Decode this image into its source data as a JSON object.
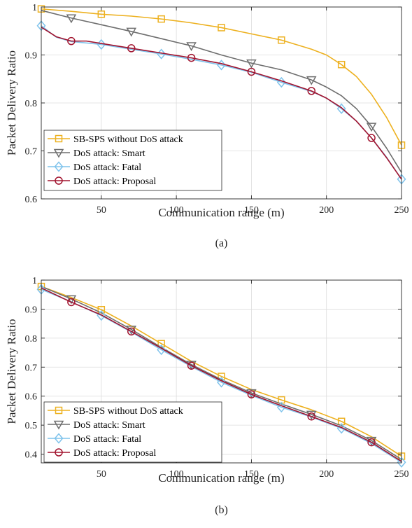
{
  "chart_data": [
    {
      "type": "line",
      "caption": "(a)",
      "xlabel": "Communication range (m)",
      "ylabel": "Packet Delivery Ratio",
      "xlim": [
        10,
        250
      ],
      "ylim": [
        0.6,
        1.0
      ],
      "xticks": [
        50,
        100,
        150,
        200,
        250
      ],
      "yticks": [
        0.6,
        0.7,
        0.8,
        0.9,
        1
      ],
      "grid": true,
      "legend_position": "bottom-left",
      "series": [
        {
          "name": "SB-SPS without DoS attack",
          "color": "#EDB120",
          "marker": "square",
          "x": [
            10,
            30,
            50,
            70,
            90,
            110,
            130,
            150,
            170,
            190,
            200,
            210,
            220,
            230,
            240,
            250
          ],
          "y": [
            0.996,
            0.991,
            0.985,
            0.981,
            0.975,
            0.967,
            0.957,
            0.944,
            0.931,
            0.912,
            0.9,
            0.88,
            0.855,
            0.818,
            0.77,
            0.712
          ],
          "marker_x": [
            10,
            50,
            90,
            130,
            170,
            210,
            250
          ]
        },
        {
          "name": "DoS attack: Smart",
          "color": "#6E6E6E",
          "marker": "triangle-down",
          "x": [
            10,
            30,
            50,
            70,
            90,
            110,
            130,
            150,
            170,
            190,
            200,
            210,
            220,
            230,
            240,
            250
          ],
          "y": [
            0.993,
            0.977,
            0.963,
            0.949,
            0.934,
            0.919,
            0.9,
            0.883,
            0.869,
            0.848,
            0.833,
            0.815,
            0.788,
            0.751,
            0.706,
            0.655
          ],
          "marker_x": [
            30,
            70,
            110,
            150,
            190,
            230
          ]
        },
        {
          "name": "DoS attack: Fatal",
          "color": "#7FC3EC",
          "marker": "diamond",
          "x": [
            10,
            20,
            30,
            50,
            70,
            90,
            110,
            130,
            150,
            170,
            190,
            200,
            210,
            220,
            230,
            240,
            250
          ],
          "y": [
            0.961,
            0.937,
            0.928,
            0.922,
            0.912,
            0.902,
            0.891,
            0.879,
            0.864,
            0.843,
            0.824,
            0.81,
            0.788,
            0.762,
            0.727,
            0.687,
            0.641
          ],
          "marker_x": [
            10,
            50,
            90,
            130,
            170,
            210,
            250
          ]
        },
        {
          "name": "DoS attack: Proposal",
          "color": "#A2142F",
          "marker": "circle",
          "x": [
            10,
            20,
            30,
            40,
            50,
            70,
            90,
            110,
            130,
            150,
            170,
            190,
            200,
            210,
            220,
            230,
            240,
            250
          ],
          "y": [
            0.958,
            0.938,
            0.929,
            0.929,
            0.924,
            0.914,
            0.904,
            0.894,
            0.882,
            0.865,
            0.846,
            0.825,
            0.81,
            0.79,
            0.762,
            0.727,
            0.686,
            0.641
          ],
          "marker_x": [
            30,
            70,
            110,
            150,
            190,
            230
          ]
        }
      ]
    },
    {
      "type": "line",
      "caption": "(b)",
      "xlabel": "Communication range (m)",
      "ylabel": "Packet Delivery Ratio",
      "xlim": [
        10,
        250
      ],
      "ylim": [
        0.37,
        1.0
      ],
      "xticks": [
        50,
        100,
        150,
        200,
        250
      ],
      "yticks": [
        0.4,
        0.5,
        0.6,
        0.7,
        0.8,
        0.9,
        1
      ],
      "grid": true,
      "legend_position": "bottom-left",
      "series": [
        {
          "name": "SB-SPS without DoS attack",
          "color": "#EDB120",
          "marker": "square",
          "x": [
            10,
            30,
            50,
            70,
            90,
            110,
            130,
            150,
            170,
            190,
            210,
            230,
            250
          ],
          "y": [
            0.978,
            0.94,
            0.898,
            0.842,
            0.781,
            0.72,
            0.668,
            0.623,
            0.587,
            0.553,
            0.513,
            0.46,
            0.393
          ],
          "marker_x": [
            10,
            50,
            90,
            130,
            170,
            210,
            250
          ]
        },
        {
          "name": "DoS attack: Smart",
          "color": "#6E6E6E",
          "marker": "triangle-down",
          "x": [
            10,
            30,
            50,
            70,
            90,
            110,
            130,
            150,
            170,
            190,
            210,
            230,
            250
          ],
          "y": [
            0.978,
            0.935,
            0.887,
            0.83,
            0.768,
            0.709,
            0.657,
            0.611,
            0.573,
            0.537,
            0.498,
            0.447,
            0.382
          ],
          "marker_x": [
            30,
            70,
            110,
            150,
            190,
            230
          ]
        },
        {
          "name": "DoS attack: Fatal",
          "color": "#7FC3EC",
          "marker": "diamond",
          "x": [
            10,
            30,
            50,
            70,
            90,
            110,
            130,
            150,
            170,
            190,
            210,
            230,
            250
          ],
          "y": [
            0.968,
            0.925,
            0.878,
            0.821,
            0.76,
            0.702,
            0.648,
            0.603,
            0.562,
            0.528,
            0.489,
            0.437,
            0.372
          ],
          "marker_x": [
            10,
            50,
            90,
            130,
            170,
            210,
            250
          ]
        },
        {
          "name": "DoS attack: Proposal",
          "color": "#A2142F",
          "marker": "circle",
          "x": [
            10,
            30,
            50,
            70,
            90,
            110,
            130,
            150,
            170,
            190,
            210,
            230,
            250
          ],
          "y": [
            0.973,
            0.924,
            0.88,
            0.823,
            0.765,
            0.705,
            0.653,
            0.606,
            0.567,
            0.53,
            0.492,
            0.441,
            0.375
          ],
          "marker_x": [
            30,
            70,
            110,
            150,
            190,
            230
          ]
        }
      ]
    }
  ]
}
